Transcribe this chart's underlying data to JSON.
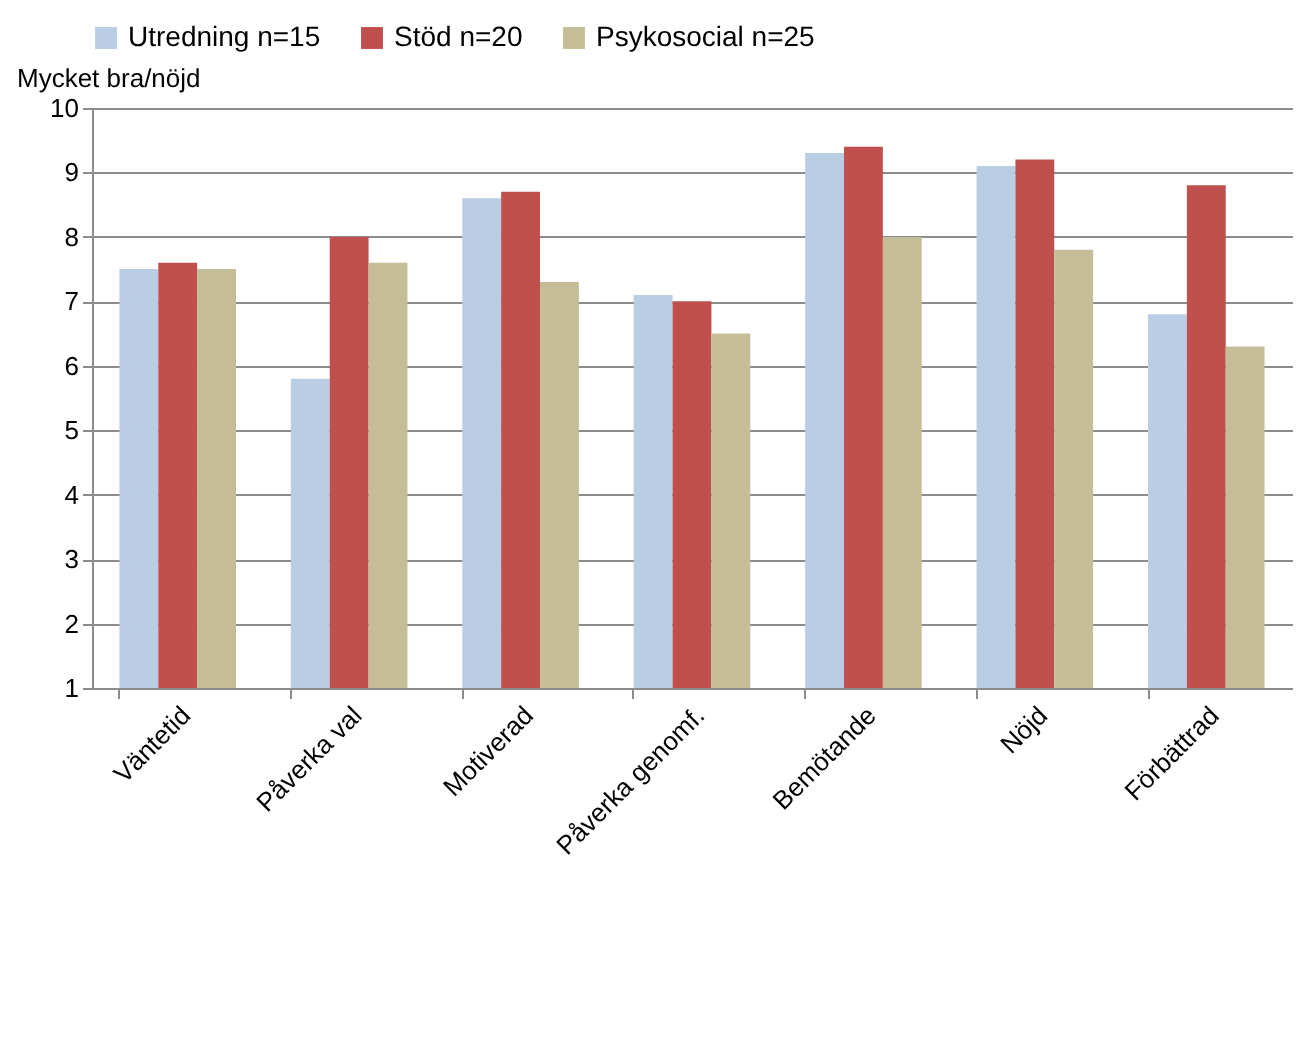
{
  "chart_data": {
    "type": "bar",
    "ylabel": "Mycket bra/nöjd",
    "categories": [
      "Väntetid",
      "Påverka val",
      "Motiverad",
      "Påverka genomf.",
      "Bemötande",
      "Nöjd",
      "Förbättrad"
    ],
    "series": [
      {
        "name": "Utredning n=15",
        "color": "#b9cde5",
        "values": [
          7.5,
          5.8,
          8.6,
          7.1,
          9.3,
          9.1,
          6.8
        ]
      },
      {
        "name": "Stöd n=20",
        "color": "#c0504d",
        "values": [
          7.6,
          8.0,
          8.7,
          7.0,
          9.4,
          9.2,
          8.8
        ]
      },
      {
        "name": "Psykosocial n=25",
        "color": "#c4bd97",
        "values": [
          7.5,
          7.6,
          7.3,
          6.5,
          8.0,
          7.8,
          6.3
        ]
      }
    ],
    "ylim": [
      1,
      10
    ],
    "yticks": [
      1,
      2,
      3,
      4,
      5,
      6,
      7,
      8,
      9,
      10
    ],
    "grid": "y",
    "legend": "top"
  }
}
